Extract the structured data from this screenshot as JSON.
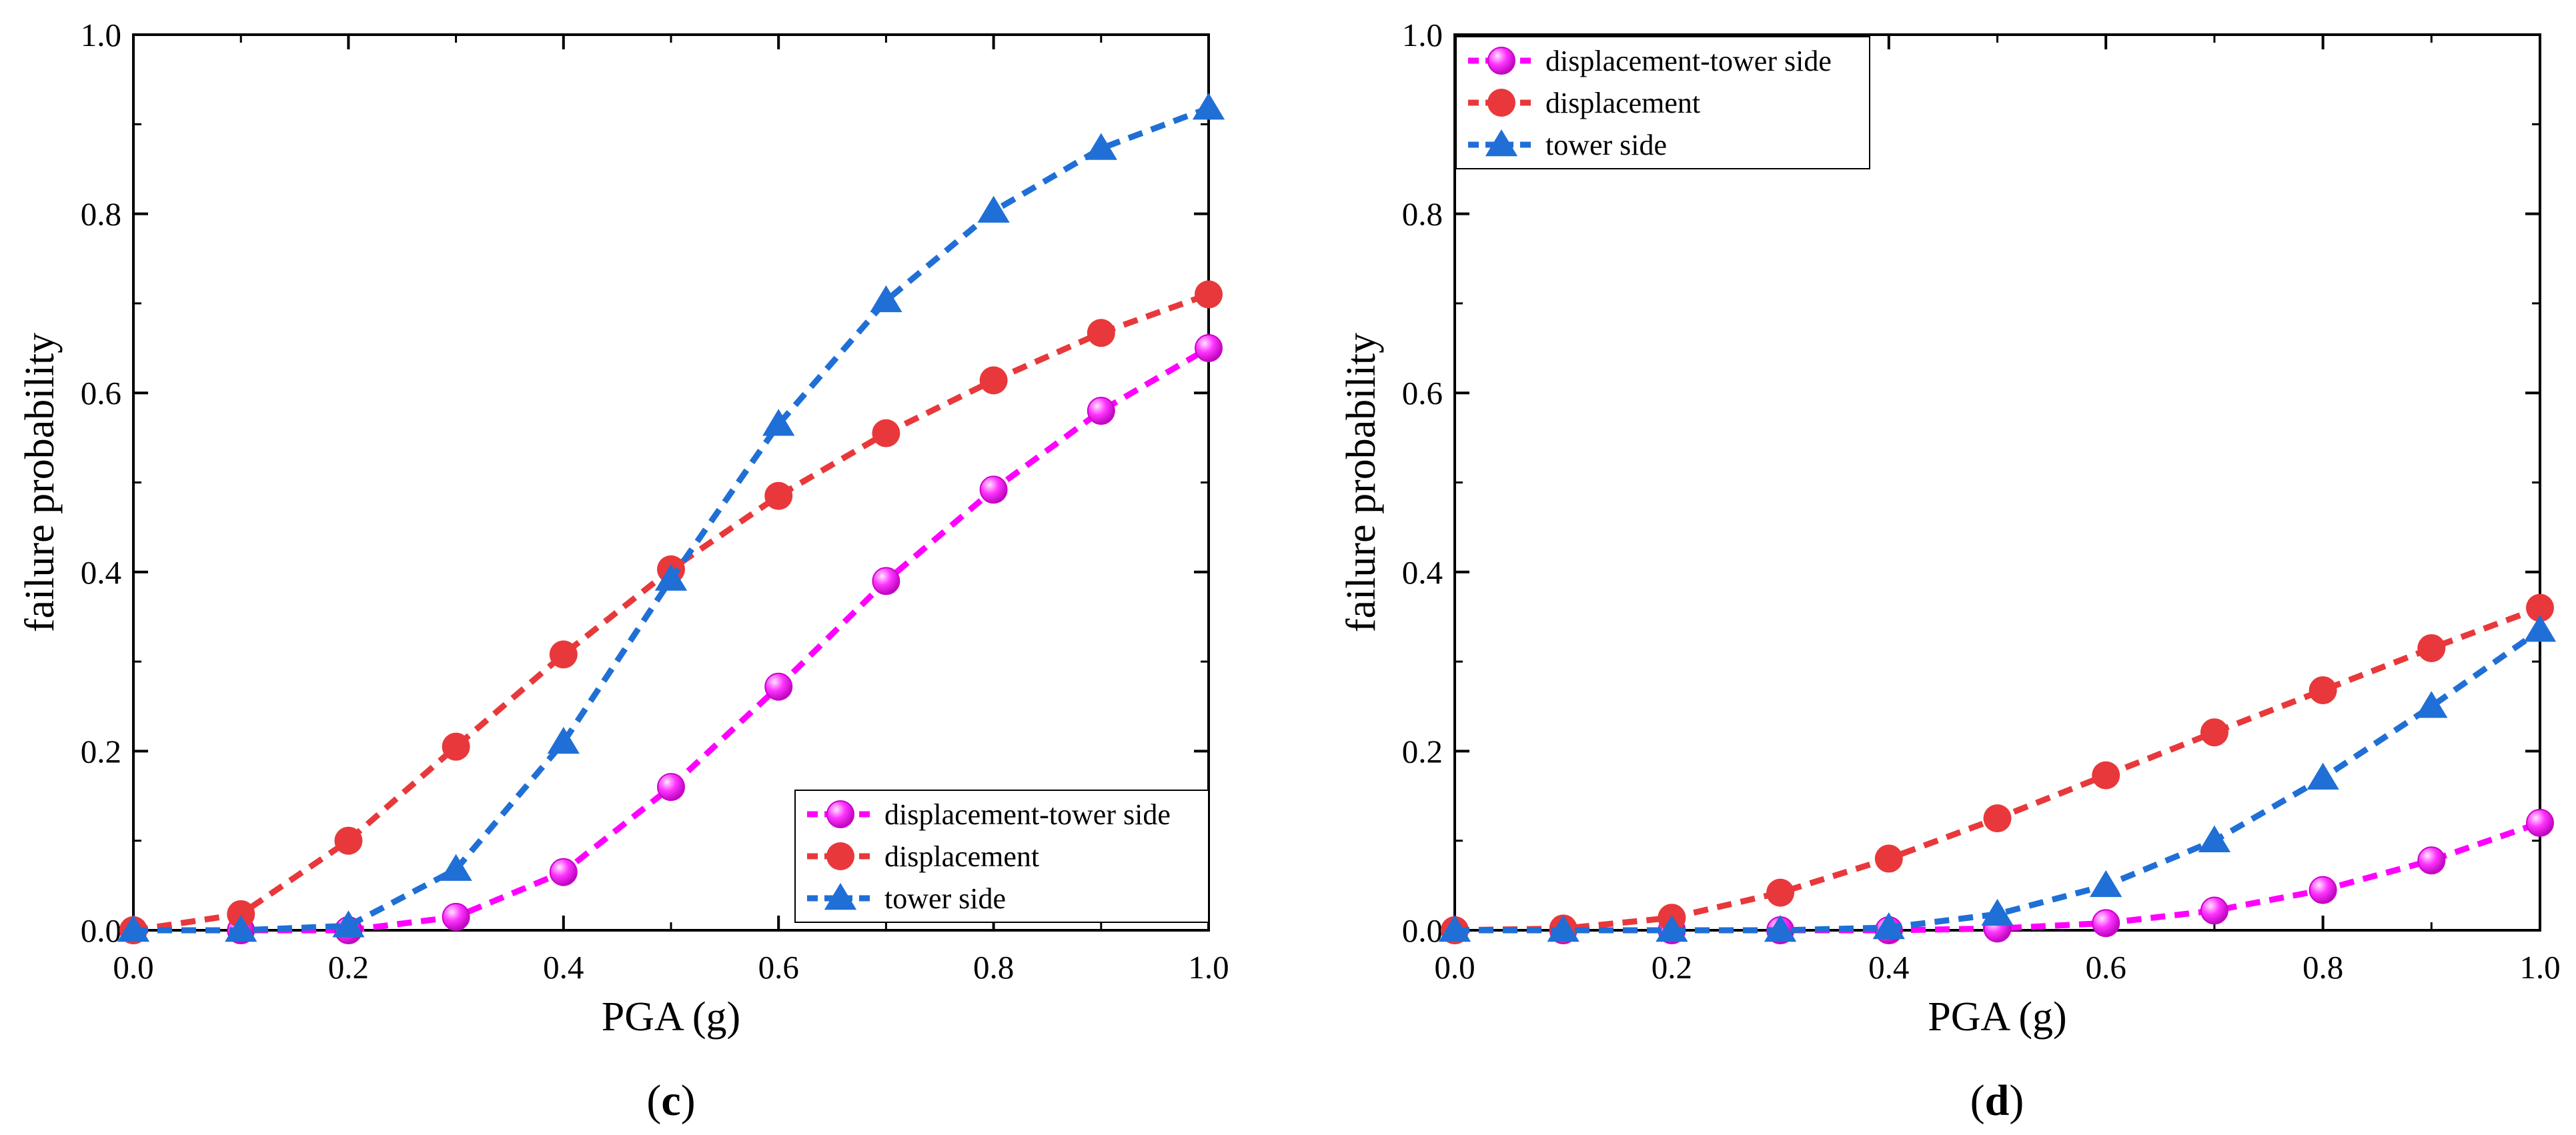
{
  "chart_data": [
    {
      "id": "c",
      "type": "line",
      "panel_label": {
        "open": "(",
        "letter": "c",
        "close": ")"
      },
      "xlabel": "PGA (g)",
      "ylabel": "failure probability",
      "xlim": [
        0.0,
        1.0
      ],
      "ylim": [
        0.0,
        1.0
      ],
      "xticks": [
        0.0,
        0.2,
        0.4,
        0.6,
        0.8,
        1.0
      ],
      "xtick_labels": [
        "0.0",
        "0.2",
        "0.4",
        "0.6",
        "0.8",
        "1.0"
      ],
      "yticks": [
        0.0,
        0.2,
        0.4,
        0.6,
        0.8,
        1.0
      ],
      "ytick_labels": [
        "0.0",
        "0.2",
        "0.4",
        "0.6",
        "0.8",
        "1.0"
      ],
      "legend_position": "bottom-right",
      "x": [
        0.0,
        0.1,
        0.2,
        0.3,
        0.4,
        0.5,
        0.6,
        0.7,
        0.8,
        0.9,
        1.0
      ],
      "series": [
        {
          "name": "displacement-tower side",
          "color": "#ff00ff",
          "marker": "sphere",
          "values": [
            0.0,
            0.0,
            0.0,
            0.015,
            0.065,
            0.16,
            0.272,
            0.39,
            0.492,
            0.58,
            0.65
          ]
        },
        {
          "name": "displacement",
          "color": "#e8383b",
          "marker": "circle",
          "values": [
            0.0,
            0.018,
            0.1,
            0.205,
            0.308,
            0.403,
            0.485,
            0.555,
            0.614,
            0.667,
            0.71
          ]
        },
        {
          "name": "tower side",
          "color": "#1f6fd6",
          "marker": "triangle",
          "values": [
            0.0,
            0.0,
            0.005,
            0.068,
            0.21,
            0.392,
            0.565,
            0.703,
            0.803,
            0.873,
            0.918
          ]
        }
      ]
    },
    {
      "id": "d",
      "type": "line",
      "panel_label": {
        "open": "(",
        "letter": "d",
        "close": ")"
      },
      "xlabel": "PGA (g)",
      "ylabel": "failure probability",
      "xlim": [
        0.0,
        1.0
      ],
      "ylim": [
        0.0,
        1.0
      ],
      "xticks": [
        0.0,
        0.2,
        0.4,
        0.6,
        0.8,
        1.0
      ],
      "xtick_labels": [
        "0.0",
        "0.2",
        "0.4",
        "0.6",
        "0.8",
        "1.0"
      ],
      "yticks": [
        0.0,
        0.2,
        0.4,
        0.6,
        0.8,
        1.0
      ],
      "ytick_labels": [
        "0.0",
        "0.2",
        "0.4",
        "0.6",
        "0.8",
        "1.0"
      ],
      "legend_position": "top-left",
      "x": [
        0.0,
        0.1,
        0.2,
        0.3,
        0.4,
        0.5,
        0.6,
        0.7,
        0.8,
        0.9,
        1.0
      ],
      "series": [
        {
          "name": "displacement-tower side",
          "color": "#ff00ff",
          "marker": "sphere",
          "values": [
            0.0,
            0.0,
            0.0,
            0.0,
            0.0,
            0.002,
            0.008,
            0.022,
            0.045,
            0.078,
            0.12
          ]
        },
        {
          "name": "displacement",
          "color": "#e8383b",
          "marker": "circle",
          "values": [
            0.0,
            0.002,
            0.014,
            0.042,
            0.08,
            0.125,
            0.173,
            0.221,
            0.268,
            0.315,
            0.36
          ]
        },
        {
          "name": "tower side",
          "color": "#1f6fd6",
          "marker": "triangle",
          "values": [
            0.0,
            0.0,
            0.0,
            0.0,
            0.003,
            0.018,
            0.05,
            0.1,
            0.17,
            0.25,
            0.335
          ]
        }
      ]
    }
  ]
}
